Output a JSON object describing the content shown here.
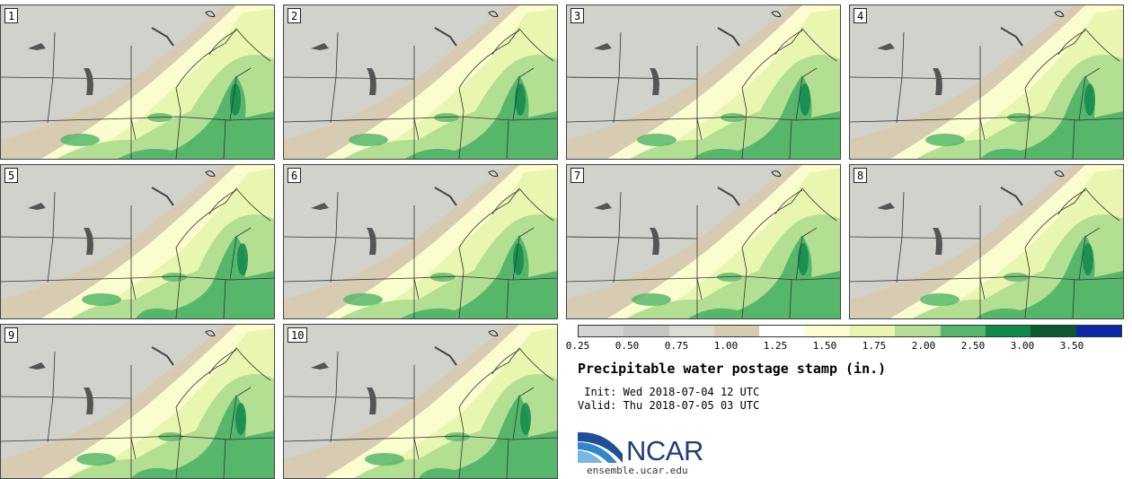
{
  "panels": [
    {
      "label": "1"
    },
    {
      "label": "2"
    },
    {
      "label": "3"
    },
    {
      "label": "4"
    },
    {
      "label": "5"
    },
    {
      "label": "6"
    },
    {
      "label": "7"
    },
    {
      "label": "8"
    },
    {
      "label": "9"
    },
    {
      "label": "10"
    }
  ],
  "colorbar": {
    "ticks": [
      "0.25",
      "0.50",
      "0.75",
      "1.00",
      "1.25",
      "1.50",
      "1.75",
      "2.00",
      "2.50",
      "3.00",
      "3.50"
    ],
    "colors": [
      "#d3d3d3",
      "#c6c6c6",
      "#dcdcd2",
      "#d7cbb1",
      "#ffffff",
      "#fbfdcf",
      "#e8f6b0",
      "#b3df93",
      "#56b76b",
      "#118a4d",
      "#0c5a2f",
      "#0a28a8"
    ]
  },
  "title": "Precipitable water postage stamp (in.)",
  "init_text": " Init: Wed 2018-07-04 12 UTC",
  "valid_text": "Valid: Thu 2018-07-05 03 UTC",
  "logo": {
    "name": "NCAR",
    "url": "ensemble.ucar.edu"
  }
}
